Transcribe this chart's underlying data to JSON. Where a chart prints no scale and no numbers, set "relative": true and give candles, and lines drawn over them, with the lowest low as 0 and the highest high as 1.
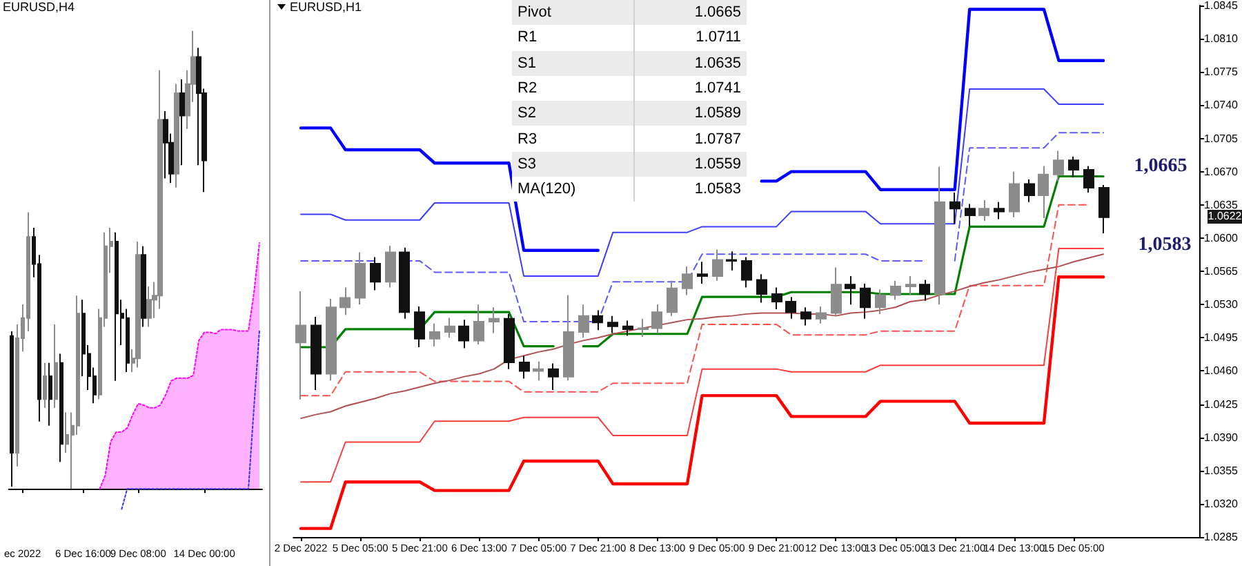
{
  "chart_data": [
    {
      "type": "candlestick",
      "title": "EURUSD,H4",
      "relative": true,
      "marker": "none",
      "categories": [
        null,
        null,
        "ec 2022",
        null,
        null,
        null,
        null,
        null,
        null,
        null,
        null,
        null,
        null,
        "6 Dec 16:00",
        null,
        null,
        null,
        null,
        null,
        null,
        null,
        null,
        null,
        "9 Dec 08:00",
        null,
        null,
        null,
        null,
        null,
        null,
        null,
        null,
        null,
        null,
        null,
        "14 Dec 00:00",
        null,
        null,
        null,
        null,
        null,
        null,
        null,
        null,
        null,
        null
      ],
      "ohlc": [
        [
          0.334,
          0.344,
          0.005,
          0.079
        ],
        [
          0.079,
          0.359,
          0.049,
          0.329
        ],
        [
          0.329,
          0.403,
          0.3,
          0.373
        ],
        [
          0.373,
          0.604,
          0.344,
          0.55
        ],
        [
          0.55,
          0.57,
          0.462,
          0.491
        ],
        [
          0.491,
          0.511,
          0.147,
          0.196
        ],
        [
          0.196,
          0.275,
          0.177,
          0.246
        ],
        [
          0.246,
          0.275,
          0.138,
          0.196
        ],
        [
          0.196,
          0.359,
          0.177,
          0.275
        ],
        [
          0.275,
          0.295,
          0.059,
          0.098
        ],
        [
          0.098,
          0.167,
          0.079,
          0.118
        ],
        [
          0.118,
          0.167,
          0,
          0.138
        ],
        [
          0.138,
          0.422,
          0.118,
          0.383
        ],
        [
          0.383,
          0.413,
          0.246,
          0.295
        ],
        [
          0.295,
          0.314,
          0.216,
          0.246
        ],
        [
          0.246,
          0.265,
          0.187,
          0.206
        ],
        [
          0.206,
          0.393,
          0.196,
          0.373
        ],
        [
          0.373,
          0.56,
          0.354,
          0.53
        ],
        [
          0.53,
          0.57,
          0.472,
          0.54
        ],
        [
          0.54,
          0.56,
          0.236,
          0.383
        ],
        [
          0.383,
          0.413,
          0.314,
          0.373
        ],
        [
          0.373,
          0.393,
          0.255,
          0.275
        ],
        [
          0.275,
          0.305,
          0.255,
          0.285
        ],
        [
          0.285,
          0.54,
          0.265,
          0.511
        ],
        [
          0.511,
          0.53,
          0.354,
          0.373
        ],
        [
          0.373,
          0.442,
          0.354,
          0.413
        ],
        [
          0.413,
          0.452,
          0.373,
          0.422
        ],
        [
          0.422,
          0.914,
          0.393,
          0.806
        ],
        [
          0.806,
          0.825,
          0.678,
          0.756
        ],
        [
          0.756,
          0.776,
          0.668,
          0.688
        ],
        [
          0.688,
          0.884,
          0.658,
          0.864
        ],
        [
          0.864,
          0.894,
          0.707,
          0.815
        ],
        [
          0.815,
          0.914,
          0.786,
          0.884
        ],
        [
          0.884,
          1,
          0.845,
          0.943
        ],
        [
          0.943,
          0.963,
          0.707,
          0.864
        ],
        [
          0.864,
          0.874,
          0.648,
          0.717
        ],
        null,
        null,
        null,
        null,
        null,
        null,
        null,
        null,
        null,
        null
      ],
      "series": [
        {
          "type": "area",
          "color": "#ff00ff",
          "line_style": "dotted",
          "values": [
            null,
            null,
            null,
            null,
            null,
            null,
            null,
            null,
            null,
            null,
            null,
            null,
            null,
            null,
            null,
            null,
            0,
            0.029,
            0.103,
            0.124,
            0.124,
            0.133,
            0.162,
            0.186,
            0.183,
            0.177,
            0.177,
            0.183,
            0.206,
            0.236,
            0.242,
            0.242,
            0.242,
            0.248,
            0.324,
            0.342,
            0.342,
            0.339,
            0.348,
            0.348,
            0.348,
            0.345,
            0.345,
            0.345,
            0.428,
            0.537
          ]
        },
        {
          "type": "line",
          "color": "#3333ff",
          "line_style": "dotted",
          "values": [
            null,
            null,
            null,
            null,
            null,
            null,
            null,
            null,
            null,
            null,
            null,
            null,
            null,
            null,
            null,
            null,
            null,
            null,
            null,
            null,
            -0.044,
            0,
            0,
            0,
            0,
            0,
            0,
            0,
            0,
            0,
            0,
            0,
            0,
            0,
            0,
            0,
            0,
            0,
            0,
            0,
            0,
            0,
            0,
            0,
            0.177,
            0.345
          ]
        }
      ]
    },
    {
      "type": "candlestick",
      "title": "EURUSD,H1",
      "marker": "none",
      "categories": [
        "2 Dec 2022",
        null,
        null,
        null,
        "5 Dec 05:00",
        null,
        null,
        null,
        "5 Dec 21:00",
        null,
        null,
        null,
        "6 Dec 13:00",
        null,
        null,
        null,
        "7 Dec 05:00",
        null,
        null,
        null,
        "7 Dec 21:00",
        null,
        null,
        null,
        "8 Dec 13:00",
        null,
        null,
        null,
        "9 Dec 05:00",
        null,
        null,
        null,
        "9 Dec 21:00",
        null,
        null,
        null,
        "12 Dec 13:00",
        null,
        null,
        null,
        "13 Dec 05:00",
        null,
        null,
        null,
        "13 Dec 21:00",
        null,
        null,
        null,
        "14 Dec 13:00",
        null,
        null,
        null,
        "15 Dec 05:00",
        null,
        null,
        null,
        null,
        null,
        null,
        null,
        null
      ],
      "ylim": [
        1.0285,
        1.0845
      ],
      "yticks": [
        1.0285,
        {
          "value": 1.032,
          "label": "1.0320"
        },
        1.0355,
        {
          "value": 1.039,
          "label": "1.0390"
        },
        1.0425,
        {
          "value": 1.046,
          "label": "1.0460"
        },
        1.0495,
        {
          "value": 1.053,
          "label": "1.0530"
        },
        1.0565,
        {
          "value": 1.06,
          "label": "1.0600"
        },
        1.0635,
        {
          "value": 1.067,
          "label": "1.0670"
        },
        1.0705,
        {
          "value": 1.074,
          "label": "1.0740"
        },
        1.0775,
        {
          "value": 1.081,
          "label": "1.0810"
        },
        1.0845
      ],
      "ohlc": [
        [
          1.049,
          1.0544,
          1.043,
          1.0508
        ],
        [
          1.0508,
          1.0517,
          1.044,
          1.0457
        ],
        [
          1.0457,
          1.0536,
          1.045,
          1.0527
        ],
        [
          1.0527,
          1.0548,
          1.0519,
          1.0537
        ],
        [
          1.0537,
          1.0585,
          1.053,
          1.0573
        ],
        [
          1.0573,
          1.058,
          1.0545,
          1.0554
        ],
        [
          1.0554,
          1.0592,
          1.0548,
          1.0585
        ],
        [
          1.0585,
          1.059,
          1.0515,
          1.0522
        ],
        [
          1.0522,
          1.0528,
          1.0485,
          1.0494
        ],
        [
          1.0494,
          1.051,
          1.0486,
          1.0501
        ],
        [
          1.0501,
          1.0516,
          1.0495,
          1.0507
        ],
        [
          1.0507,
          1.0514,
          1.0484,
          1.0492
        ],
        [
          1.0492,
          1.053,
          1.0488,
          1.0512
        ],
        [
          1.0512,
          1.0527,
          1.05,
          1.0515
        ],
        [
          1.0515,
          1.052,
          1.0462,
          1.0469
        ],
        [
          1.0469,
          1.0476,
          1.0452,
          1.046
        ],
        [
          1.046,
          1.047,
          1.045,
          1.0462
        ],
        [
          1.0462,
          1.0468,
          1.044,
          1.0454
        ],
        [
          1.0454,
          1.054,
          1.045,
          1.0501
        ],
        [
          1.0501,
          1.053,
          1.0495,
          1.0518
        ],
        [
          1.0518,
          1.0524,
          1.0503,
          1.0511
        ],
        [
          1.0511,
          1.0518,
          1.05,
          1.0507
        ],
        [
          1.0507,
          1.0513,
          1.0497,
          1.0504
        ],
        [
          1.0504,
          1.0515,
          1.0496,
          1.0505
        ],
        [
          1.0505,
          1.053,
          1.05,
          1.0522
        ],
        [
          1.0522,
          1.0555,
          1.0518,
          1.0547
        ],
        [
          1.0547,
          1.057,
          1.054,
          1.0562
        ],
        [
          1.0562,
          1.0575,
          1.0552,
          1.056
        ],
        [
          1.056,
          1.0588,
          1.0555,
          1.0577
        ],
        [
          1.0577,
          1.0586,
          1.0566,
          1.0576
        ],
        [
          1.0576,
          1.058,
          1.0548,
          1.0556
        ],
        [
          1.0556,
          1.0562,
          1.0532,
          1.0541
        ],
        [
          1.0541,
          1.0548,
          1.0525,
          1.0533
        ],
        [
          1.0533,
          1.0538,
          1.0515,
          1.0522
        ],
        [
          1.0522,
          1.0527,
          1.0508,
          1.0515
        ],
        [
          1.0515,
          1.0528,
          1.051,
          1.0521
        ],
        [
          1.0521,
          1.0569,
          1.0518,
          1.0551
        ],
        [
          1.0551,
          1.056,
          1.053,
          1.0547
        ],
        [
          1.0547,
          1.0552,
          1.0515,
          1.0527
        ],
        [
          1.0527,
          1.0546,
          1.052,
          1.054
        ],
        [
          1.054,
          1.0555,
          1.0535,
          1.0549
        ],
        [
          1.0549,
          1.056,
          1.054,
          1.0551
        ],
        [
          1.0551,
          1.0556,
          1.0534,
          1.0541
        ],
        [
          1.0541,
          1.0675,
          1.053,
          1.0638
        ],
        [
          1.0638,
          1.0648,
          1.0615,
          1.0631
        ],
        [
          1.0631,
          1.0636,
          1.0612,
          1.0624
        ],
        [
          1.0624,
          1.064,
          1.0618,
          1.0631
        ],
        [
          1.0631,
          1.0638,
          1.062,
          1.0628
        ],
        [
          1.0628,
          1.067,
          1.0622,
          1.0657
        ],
        [
          1.0657,
          1.0662,
          1.0638,
          1.0645
        ],
        [
          1.0645,
          1.0676,
          1.0621,
          1.0667
        ],
        [
          1.0667,
          1.0692,
          1.066,
          1.0682
        ],
        [
          1.0682,
          1.0686,
          1.0664,
          1.0672
        ],
        [
          1.0672,
          1.0676,
          1.0648,
          1.0653
        ],
        [
          1.0653,
          1.0656,
          1.0605,
          1.0622
        ],
        null,
        null,
        null,
        null,
        null,
        null
      ],
      "series": [
        {
          "type": "line",
          "color": "#0000ff",
          "values": [
            1.0716,
            1.0716,
            1.0716,
            1.0693,
            1.0693,
            1.0693,
            1.0693,
            1.0693,
            1.0693,
            1.0679,
            1.0679,
            1.0679,
            1.0679,
            1.0679,
            1.0679,
            1.0587,
            1.0587,
            1.0587,
            1.0587,
            1.0587,
            1.0587,
            null,
            null,
            null,
            null,
            null,
            null,
            null,
            null,
            null,
            null,
            1.066,
            1.066,
            1.067,
            1.067,
            1.067,
            1.067,
            1.067,
            1.067,
            1.0651,
            1.0651,
            1.0651,
            1.0651,
            1.0651,
            1.0651,
            1.0841,
            1.0841,
            1.0841,
            1.0841,
            1.0841,
            1.0841,
            1.0787,
            1.0787,
            1.0787,
            1.0787,
            null,
            null,
            null,
            null,
            null,
            null
          ]
        },
        {
          "type": "line",
          "color": "#3c3cff",
          "values": [
            1.0625,
            1.0625,
            1.0625,
            1.0619,
            1.0619,
            1.0619,
            1.0619,
            1.0619,
            1.0619,
            1.0637,
            1.0637,
            1.0637,
            1.0637,
            1.0637,
            1.0637,
            1.056,
            1.056,
            1.056,
            1.056,
            1.056,
            1.056,
            1.0606,
            1.0606,
            1.0606,
            1.0606,
            1.0606,
            1.0606,
            1.0612,
            1.0612,
            1.0612,
            1.0612,
            1.0612,
            1.0612,
            1.0628,
            1.0628,
            1.0628,
            1.0628,
            1.0628,
            1.0628,
            1.0615,
            1.0615,
            1.0615,
            1.0615,
            1.0615,
            1.0615,
            1.0757,
            1.0757,
            1.0757,
            1.0757,
            1.0757,
            1.0757,
            1.0741,
            1.0741,
            1.0741,
            1.0741,
            null,
            null,
            null,
            null,
            null,
            null
          ]
        },
        {
          "type": "line",
          "color": "#5a5aff",
          "line_style": "dashed",
          "values": [
            1.0576,
            1.0576,
            1.0576,
            1.0576,
            1.0576,
            1.0576,
            null,
            1.0576,
            1.0576,
            1.0564,
            1.0564,
            1.0564,
            1.0564,
            1.0564,
            1.0564,
            1.0512,
            1.0512,
            1.0512,
            1.0512,
            1.0512,
            1.0512,
            1.0554,
            1.0554,
            1.0554,
            1.0554,
            1.0554,
            1.0554,
            1.0583,
            1.0583,
            1.0583,
            1.0583,
            1.0583,
            1.0583,
            1.0583,
            1.0583,
            1.0583,
            1.0583,
            1.0583,
            1.0583,
            1.0576,
            1.0576,
            1.0576,
            1.0576,
            null,
            1.0576,
            1.0695,
            1.0695,
            1.0695,
            1.0695,
            1.0695,
            1.0695,
            1.0711,
            1.0711,
            1.0711,
            1.0711,
            null,
            null,
            null,
            null,
            null,
            null
          ]
        },
        {
          "type": "line",
          "color": "#008000",
          "values": [
            1.0485,
            1.0485,
            1.0485,
            1.0504,
            1.0504,
            1.0504,
            1.0504,
            1.0504,
            1.0504,
            1.0522,
            1.0522,
            1.0522,
            1.0522,
            1.0522,
            1.0522,
            1.0486,
            1.0486,
            1.0486,
            null,
            1.0486,
            1.0486,
            1.0499,
            1.0499,
            1.0499,
            1.0499,
            1.0499,
            1.0499,
            1.0538,
            1.0538,
            1.0538,
            1.0538,
            1.0538,
            1.0538,
            1.0543,
            1.0543,
            1.0543,
            1.0543,
            1.0543,
            1.0543,
            1.0541,
            1.0541,
            1.0541,
            1.0541,
            1.0541,
            1.0541,
            1.0612,
            1.0612,
            1.0612,
            1.0612,
            1.0612,
            1.0612,
            1.0665,
            1.0665,
            1.0665,
            1.0665,
            null,
            null,
            null,
            null,
            null,
            null
          ]
        },
        {
          "type": "line",
          "color": "#ff5050",
          "line_style": "dashed",
          "values": [
            1.0434,
            1.0434,
            1.0434,
            1.0459,
            1.0459,
            1.0459,
            1.0459,
            1.0459,
            1.0459,
            1.0449,
            1.0449,
            1.0449,
            1.0449,
            1.0449,
            1.0449,
            1.0438,
            1.0438,
            1.0438,
            1.0438,
            1.0438,
            1.0438,
            1.0447,
            1.0447,
            1.0447,
            1.0447,
            1.0447,
            1.0447,
            1.0509,
            1.0509,
            1.0509,
            1.0509,
            1.0509,
            1.0509,
            1.0498,
            1.0498,
            1.0498,
            1.0498,
            1.0498,
            1.0498,
            1.0502,
            1.0502,
            1.0502,
            1.0502,
            1.0502,
            1.0502,
            1.055,
            1.055,
            1.055,
            1.055,
            1.055,
            1.055,
            1.0635,
            1.0635,
            1.0635,
            null,
            null,
            null,
            null,
            null,
            null,
            null
          ]
        },
        {
          "type": "line",
          "color": "#ff3c3c",
          "values": [
            1.0343,
            1.0343,
            1.0343,
            1.0385,
            1.0385,
            1.0385,
            1.0385,
            1.0385,
            1.0385,
            1.0407,
            1.0407,
            1.0407,
            1.0407,
            1.0407,
            1.0407,
            1.0411,
            1.0411,
            1.0411,
            1.0411,
            1.0411,
            1.0411,
            1.0392,
            1.0392,
            1.0392,
            1.0392,
            1.0392,
            1.0392,
            1.0462,
            1.0462,
            1.0462,
            1.0462,
            1.0462,
            1.0462,
            1.0459,
            1.0459,
            1.0459,
            1.0459,
            1.0459,
            1.0459,
            1.0466,
            1.0466,
            1.0466,
            1.0466,
            1.0466,
            1.0466,
            1.0466,
            1.0466,
            1.0466,
            1.0466,
            1.0466,
            1.0466,
            1.0589,
            1.0589,
            1.0589,
            1.0589,
            null,
            null,
            null,
            null,
            null,
            null
          ]
        },
        {
          "type": "line",
          "color": "#ff0000",
          "values": [
            1.0294,
            1.0294,
            1.0294,
            1.0343,
            1.0343,
            1.0343,
            1.0343,
            1.0343,
            1.0343,
            1.0334,
            1.0334,
            1.0334,
            1.0334,
            1.0334,
            1.0334,
            1.0365,
            1.0365,
            1.0365,
            1.0365,
            1.0365,
            1.0365,
            1.0341,
            1.0341,
            1.0341,
            1.0341,
            1.0341,
            1.0341,
            1.0434,
            1.0434,
            1.0434,
            1.0434,
            1.0434,
            1.0434,
            1.0412,
            1.0412,
            1.0412,
            1.0412,
            1.0412,
            1.0412,
            1.0428,
            1.0428,
            1.0428,
            1.0428,
            1.0428,
            1.0428,
            1.0405,
            1.0405,
            1.0405,
            1.0405,
            1.0405,
            1.0405,
            1.0559,
            1.0559,
            1.0559,
            1.0559,
            null,
            null,
            null,
            null,
            null,
            null
          ]
        },
        {
          "type": "line",
          "color": "#b05050",
          "values": [
            1.041,
            1.0414,
            1.0417,
            1.0423,
            1.0427,
            1.0431,
            1.0436,
            1.0439,
            1.0443,
            1.0447,
            1.045,
            1.0454,
            1.0457,
            1.0462,
            1.0472,
            1.0476,
            1.048,
            1.0483,
            1.0488,
            1.0492,
            1.0495,
            1.0499,
            1.0502,
            1.0505,
            1.0508,
            1.0511,
            1.0514,
            1.0515,
            1.0517,
            1.0518,
            1.052,
            1.0521,
            1.0521,
            1.0521,
            1.052,
            1.052,
            1.0518,
            1.0521,
            1.0522,
            1.0524,
            1.0527,
            1.0533,
            1.0535,
            1.054,
            1.0544,
            1.0549,
            1.0553,
            1.0556,
            1.056,
            1.0564,
            1.0567,
            1.057,
            1.0575,
            1.0579,
            1.0583,
            null,
            null,
            null,
            null,
            null,
            null
          ]
        }
      ],
      "annotations": [
        "Pivot",
        "1.0665",
        "R1",
        "1.0711",
        "S1",
        "1.0635",
        "R2",
        "1.0741",
        "S2",
        "1.0589",
        "R3",
        "1.0787",
        "S3",
        "1.0559",
        "MA(120)",
        "1.0583",
        "1,0665",
        "1,0583",
        "1.0622"
      ]
    }
  ]
}
